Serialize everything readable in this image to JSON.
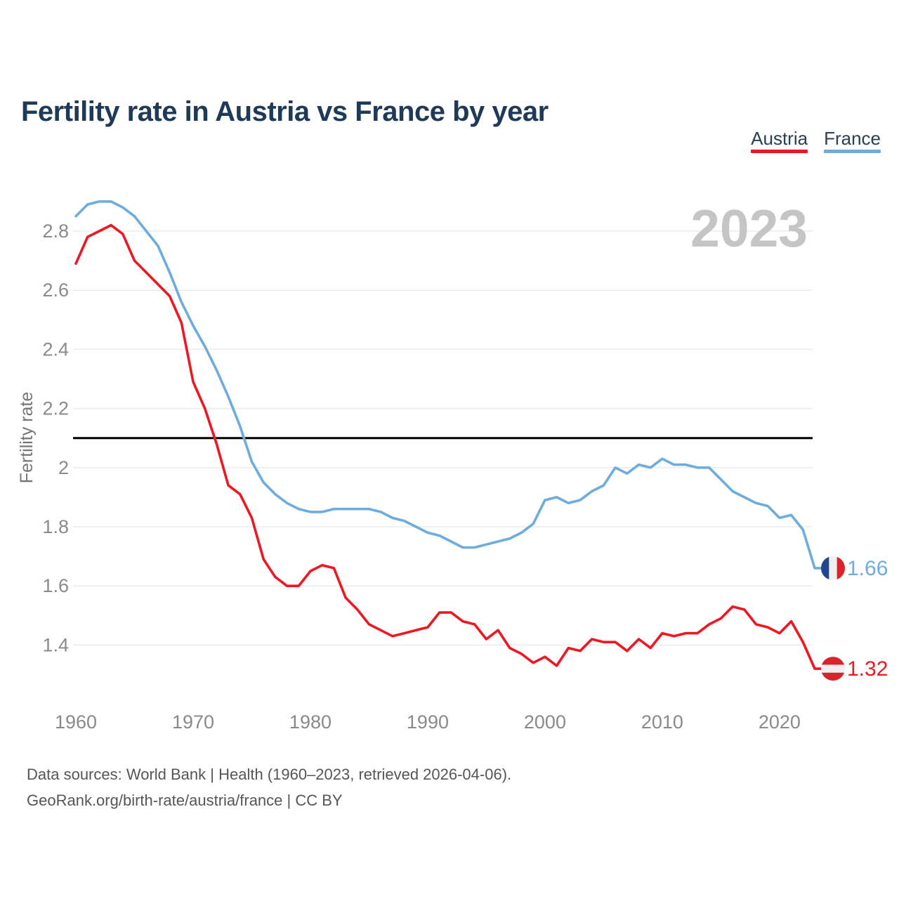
{
  "header": {
    "title": "Fertility rate in Austria vs France by year"
  },
  "chart_data": {
    "type": "line",
    "title": "Fertility rate in Austria vs France by year",
    "xlabel": "",
    "ylabel": "Fertility rate",
    "watermark": "2023",
    "legend_position": "top-right",
    "grid": "horizontal",
    "xlim": [
      1960,
      2023
    ],
    "ylim": [
      1.25,
      2.95
    ],
    "xticks": [
      1960,
      1970,
      1980,
      1990,
      2000,
      2010,
      2020
    ],
    "yticks": [
      "2.8",
      "2.6",
      "2.4",
      "2.2",
      "2",
      "1.8",
      "1.6",
      "1.4"
    ],
    "reference_line": {
      "value": 2.1,
      "color": "#000000"
    },
    "x_years": [
      1960,
      1961,
      1962,
      1963,
      1964,
      1965,
      1966,
      1967,
      1968,
      1969,
      1970,
      1971,
      1972,
      1973,
      1974,
      1975,
      1976,
      1977,
      1978,
      1979,
      1980,
      1981,
      1982,
      1983,
      1984,
      1985,
      1986,
      1987,
      1988,
      1989,
      1990,
      1991,
      1992,
      1993,
      1994,
      1995,
      1996,
      1997,
      1998,
      1999,
      2000,
      2001,
      2002,
      2003,
      2004,
      2005,
      2006,
      2007,
      2008,
      2009,
      2010,
      2011,
      2012,
      2013,
      2014,
      2015,
      2016,
      2017,
      2018,
      2019,
      2020,
      2021,
      2022,
      2023
    ],
    "series": [
      {
        "name": "Austria",
        "color": "#f01722",
        "end_label": "1.32",
        "flag": {
          "orientation": "horizontal",
          "colors": [
            "#d8232a",
            "#f0f0f0",
            "#d8232a"
          ]
        },
        "values": [
          2.69,
          2.78,
          2.8,
          2.82,
          2.79,
          2.7,
          2.66,
          2.62,
          2.58,
          2.49,
          2.29,
          2.2,
          2.08,
          1.94,
          1.91,
          1.83,
          1.69,
          1.63,
          1.6,
          1.6,
          1.65,
          1.67,
          1.66,
          1.56,
          1.52,
          1.47,
          1.45,
          1.43,
          1.44,
          1.45,
          1.46,
          1.51,
          1.51,
          1.48,
          1.47,
          1.42,
          1.45,
          1.39,
          1.37,
          1.34,
          1.36,
          1.33,
          1.39,
          1.38,
          1.42,
          1.41,
          1.41,
          1.38,
          1.42,
          1.39,
          1.44,
          1.43,
          1.44,
          1.44,
          1.47,
          1.49,
          1.53,
          1.52,
          1.47,
          1.46,
          1.44,
          1.48,
          1.41,
          1.32
        ]
      },
      {
        "name": "France",
        "color": "#6eacde",
        "end_label": "1.66",
        "flag": {
          "orientation": "vertical",
          "colors": [
            "#21468b",
            "#f0f0f0",
            "#d8232a"
          ]
        },
        "values": [
          2.85,
          2.89,
          2.9,
          2.9,
          2.88,
          2.85,
          2.8,
          2.75,
          2.66,
          2.56,
          2.48,
          2.41,
          2.33,
          2.24,
          2.14,
          2.02,
          1.95,
          1.91,
          1.88,
          1.86,
          1.85,
          1.85,
          1.86,
          1.86,
          1.86,
          1.86,
          1.85,
          1.83,
          1.82,
          1.8,
          1.78,
          1.77,
          1.75,
          1.73,
          1.73,
          1.74,
          1.75,
          1.76,
          1.78,
          1.81,
          1.89,
          1.9,
          1.88,
          1.89,
          1.92,
          1.94,
          2.0,
          1.98,
          2.01,
          2.0,
          2.03,
          2.01,
          2.01,
          2.0,
          2.0,
          1.96,
          1.92,
          1.9,
          1.88,
          1.87,
          1.83,
          1.84,
          1.79,
          1.66
        ]
      }
    ],
    "colors": {
      "gridline": "#ebebeb",
      "tick_text": "#8a8a8a",
      "axis_title": "#757575",
      "watermark": "#c5c5c5"
    }
  },
  "footer": {
    "line1": "Data sources: World Bank | Health (1960–2023, retrieved 2026-04-06).",
    "line2": "GeoRank.org/birth-rate/austria/france | CC BY"
  }
}
